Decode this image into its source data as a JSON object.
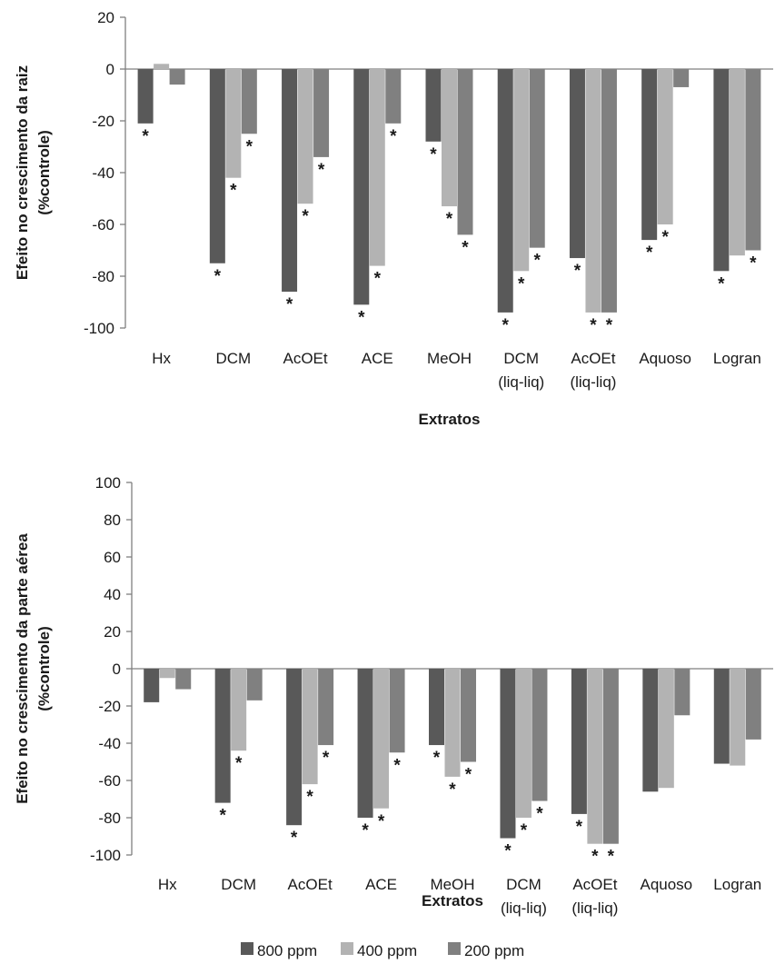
{
  "legend": {
    "items": [
      {
        "label": "800 ppm",
        "color": "#595959"
      },
      {
        "label": "400 ppm",
        "color": "#b3b3b3"
      },
      {
        "label": "200 ppm",
        "color": "#808080"
      }
    ]
  },
  "chart_data": [
    {
      "type": "bar",
      "title": "",
      "xlabel": "Extratos",
      "ylabel": "Efeito no crescimento da raiz (%controle)",
      "ylim": [
        -100,
        20
      ],
      "yticks": [
        20,
        0,
        -20,
        -40,
        -60,
        -80,
        -100
      ],
      "grid": false,
      "categories": [
        [
          "Hx"
        ],
        [
          "DCM"
        ],
        [
          "AcOEt"
        ],
        [
          "ACE"
        ],
        [
          "MeOH"
        ],
        [
          "DCM",
          "(liq-liq)"
        ],
        [
          "AcOEt",
          "(liq-liq)"
        ],
        [
          "Aquoso"
        ],
        [
          "Logran"
        ]
      ],
      "series": [
        {
          "name": "800 ppm",
          "color": "#595959",
          "values": [
            -21,
            -75,
            -86,
            -91,
            -28,
            -94,
            -73,
            -66,
            -78
          ],
          "significant": [
            true,
            true,
            true,
            true,
            true,
            true,
            true,
            true,
            true
          ]
        },
        {
          "name": "400 ppm",
          "color": "#b3b3b3",
          "values": [
            2,
            -42,
            -52,
            -76,
            -53,
            -78,
            -94,
            -60,
            -72
          ],
          "significant": [
            false,
            true,
            true,
            true,
            true,
            true,
            true,
            true,
            false
          ]
        },
        {
          "name": "200 ppm",
          "color": "#808080",
          "values": [
            -6,
            -25,
            -34,
            -21,
            -64,
            -69,
            -94,
            -7,
            -70
          ],
          "significant": [
            false,
            true,
            true,
            true,
            true,
            true,
            true,
            false,
            true
          ]
        }
      ]
    },
    {
      "type": "bar",
      "title": "",
      "xlabel": "Extratos",
      "ylabel": "Efeito no crescimento da parte aérea (%controle)",
      "ylim": [
        -100,
        100
      ],
      "yticks": [
        100,
        80,
        60,
        40,
        20,
        0,
        -20,
        -40,
        -60,
        -80,
        -100
      ],
      "grid": false,
      "categories": [
        [
          "Hx"
        ],
        [
          "DCM"
        ],
        [
          "AcOEt"
        ],
        [
          "ACE"
        ],
        [
          "MeOH"
        ],
        [
          "DCM",
          "(liq-liq)"
        ],
        [
          "AcOEt",
          "(liq-liq)"
        ],
        [
          "Aquoso"
        ],
        [
          "Logran"
        ]
      ],
      "series": [
        {
          "name": "800 ppm",
          "color": "#595959",
          "values": [
            -18,
            -72,
            -84,
            -80,
            -41,
            -91,
            -78,
            -66,
            -51
          ],
          "significant": [
            false,
            true,
            true,
            true,
            true,
            true,
            true,
            false,
            false
          ]
        },
        {
          "name": "400 ppm",
          "color": "#b3b3b3",
          "values": [
            -5,
            -44,
            -62,
            -75,
            -58,
            -80,
            -94,
            -64,
            -52
          ],
          "significant": [
            false,
            true,
            true,
            true,
            true,
            true,
            true,
            false,
            false
          ]
        },
        {
          "name": "200 ppm",
          "color": "#808080",
          "values": [
            -11,
            -17,
            -41,
            -45,
            -50,
            -71,
            -94,
            -25,
            -38
          ],
          "significant": [
            false,
            false,
            true,
            true,
            true,
            true,
            true,
            false,
            false
          ]
        }
      ]
    }
  ]
}
